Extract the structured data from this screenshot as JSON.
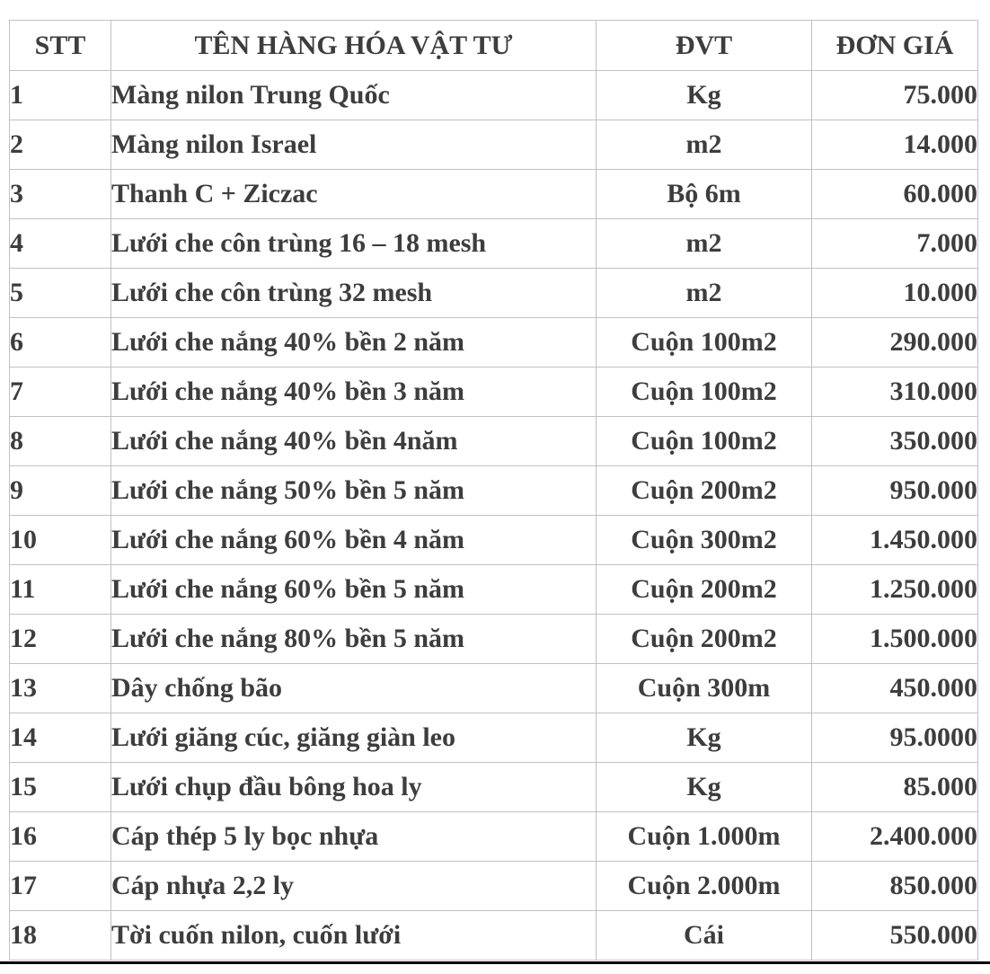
{
  "table": {
    "columns": [
      {
        "key": "stt",
        "label": "STT"
      },
      {
        "key": "name",
        "label": "TÊN HÀNG HÓA VẬT TƯ"
      },
      {
        "key": "unit",
        "label": "ĐVT"
      },
      {
        "key": "price",
        "label": "ĐƠN GIÁ"
      }
    ],
    "rows": [
      {
        "stt": "1",
        "name": "Màng nilon Trung Quốc",
        "unit": "Kg",
        "price": "75.000"
      },
      {
        "stt": "2",
        "name": "Màng nilon Israel",
        "unit": "m2",
        "price": "14.000"
      },
      {
        "stt": "3",
        "name": "Thanh C + Ziczac",
        "unit": "Bộ 6m",
        "price": "60.000"
      },
      {
        "stt": "4",
        "name": "Lưới che côn trùng 16 – 18 mesh",
        "unit": "m2",
        "price": "7.000"
      },
      {
        "stt": "5",
        "name": "Lưới che côn trùng 32 mesh",
        "unit": "m2",
        "price": "10.000"
      },
      {
        "stt": "6",
        "name": "Lưới che nắng 40% bền 2 năm",
        "unit": "Cuộn 100m2",
        "price": "290.000"
      },
      {
        "stt": "7",
        "name": "Lưới che nắng 40% bền 3 năm",
        "unit": "Cuộn 100m2",
        "price": "310.000"
      },
      {
        "stt": "8",
        "name": "Lưới che nắng 40% bền 4năm",
        "unit": "Cuộn 100m2",
        "price": "350.000"
      },
      {
        "stt": "9",
        "name": "Lưới che nắng 50% bền 5 năm",
        "unit": "Cuộn 200m2",
        "price": "950.000"
      },
      {
        "stt": "10",
        "name": "Lưới che nắng 60% bền 4 năm",
        "unit": "Cuộn 300m2",
        "price": "1.450.000"
      },
      {
        "stt": "11",
        "name": "Lưới che nắng 60% bền 5 năm",
        "unit": "Cuộn 200m2",
        "price": "1.250.000"
      },
      {
        "stt": "12",
        "name": "Lưới che nắng 80% bền 5 năm",
        "unit": "Cuộn 200m2",
        "price": "1.500.000"
      },
      {
        "stt": "13",
        "name": "Dây chống bão",
        "unit": "Cuộn 300m",
        "price": "450.000"
      },
      {
        "stt": "14",
        "name": "Lưới giăng cúc, giăng giàn leo",
        "unit": "Kg",
        "price": "95.0000"
      },
      {
        "stt": "15",
        "name": "Lưới chụp đầu bông hoa ly",
        "unit": "Kg",
        "price": "85.000"
      },
      {
        "stt": "16",
        "name": "Cáp thép 5 ly bọc nhựa",
        "unit": "Cuộn 1.000m",
        "price": "2.400.000"
      },
      {
        "stt": "17",
        "name": "Cáp nhựa 2,2 ly",
        "unit": "Cuộn 2.000m",
        "price": "850.000"
      },
      {
        "stt": "18",
        "name": "Tời cuốn nilon, cuốn lưới",
        "unit": "Cái",
        "price": "550.000"
      }
    ]
  },
  "colors": {
    "text": "#3d3d3d",
    "border": "#c1c1c1",
    "bottom_bar": "#000000"
  }
}
